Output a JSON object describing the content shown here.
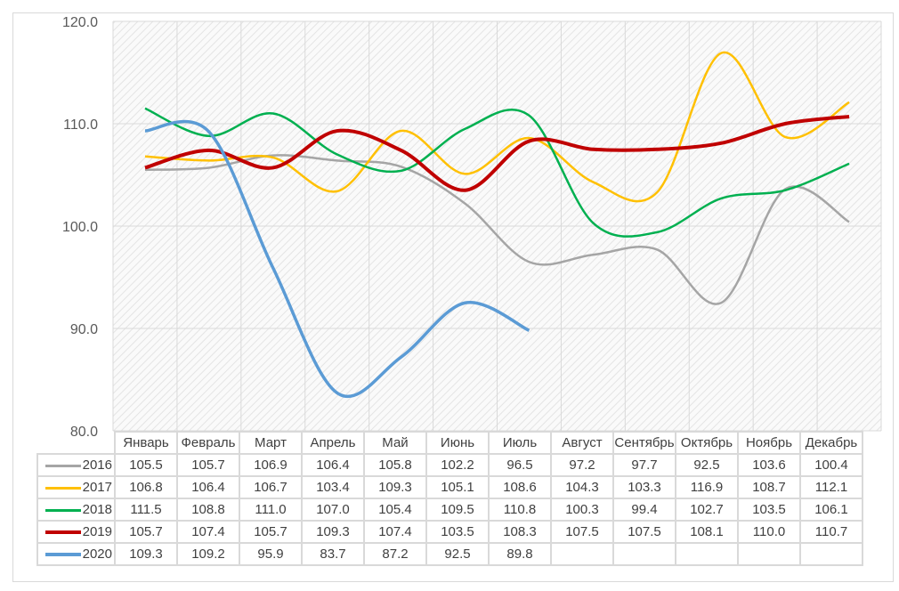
{
  "chart_data": {
    "type": "line",
    "title": "",
    "categories": [
      "Январь",
      "Февраль",
      "Март",
      "Апрель",
      "Май",
      "Июнь",
      "Июль",
      "Август",
      "Сентябрь",
      "Октябрь",
      "Ноябрь",
      "Декабрь"
    ],
    "ylim": [
      80,
      120
    ],
    "yticks": [
      "80.0",
      "90.0",
      "100.0",
      "110.0",
      "120.0"
    ],
    "grid": true,
    "legend": "data-table",
    "series": [
      {
        "name": "2016",
        "color": "#a5a5a5",
        "values": [
          105.5,
          105.7,
          106.9,
          106.4,
          105.8,
          102.2,
          96.5,
          97.2,
          97.7,
          92.5,
          103.6,
          100.4
        ],
        "labels": [
          "105.5",
          "105.7",
          "106.9",
          "106.4",
          "105.8",
          "102.2",
          "96.5",
          "97.2",
          "97.7",
          "92.5",
          "103.6",
          "100.4"
        ]
      },
      {
        "name": "2017",
        "color": "#ffc000",
        "values": [
          106.8,
          106.4,
          106.7,
          103.4,
          109.3,
          105.1,
          108.6,
          104.3,
          103.3,
          116.9,
          108.7,
          112.1
        ],
        "labels": [
          "106.8",
          "106.4",
          "106.7",
          "103.4",
          "109.3",
          "105.1",
          "108.6",
          "104.3",
          "103.3",
          "116.9",
          "108.7",
          "112.1"
        ]
      },
      {
        "name": "2018",
        "color": "#00b050",
        "values": [
          111.5,
          108.8,
          111.0,
          107.0,
          105.4,
          109.5,
          110.8,
          100.3,
          99.4,
          102.7,
          103.5,
          106.1
        ],
        "labels": [
          "111.5",
          "108.8",
          "111.0",
          "107.0",
          "105.4",
          "109.5",
          "110.8",
          "100.3",
          "99.4",
          "102.7",
          "103.5",
          "106.1"
        ]
      },
      {
        "name": "2019",
        "color": "#c00000",
        "values": [
          105.7,
          107.4,
          105.7,
          109.3,
          107.4,
          103.5,
          108.3,
          107.5,
          107.5,
          108.1,
          110.0,
          110.7
        ],
        "labels": [
          "105.7",
          "107.4",
          "105.7",
          "109.3",
          "107.4",
          "103.5",
          "108.3",
          "107.5",
          "107.5",
          "108.1",
          "110.0",
          "110.7"
        ]
      },
      {
        "name": "2020",
        "color": "#5b9bd5",
        "values": [
          109.3,
          109.2,
          95.9,
          83.7,
          87.2,
          92.5,
          89.8,
          null,
          null,
          null,
          null,
          null
        ],
        "labels": [
          "109.3",
          "109.2",
          "95.9",
          "83.7",
          "87.2",
          "92.5",
          "89.8",
          "",
          "",
          "",
          "",
          ""
        ]
      }
    ]
  }
}
